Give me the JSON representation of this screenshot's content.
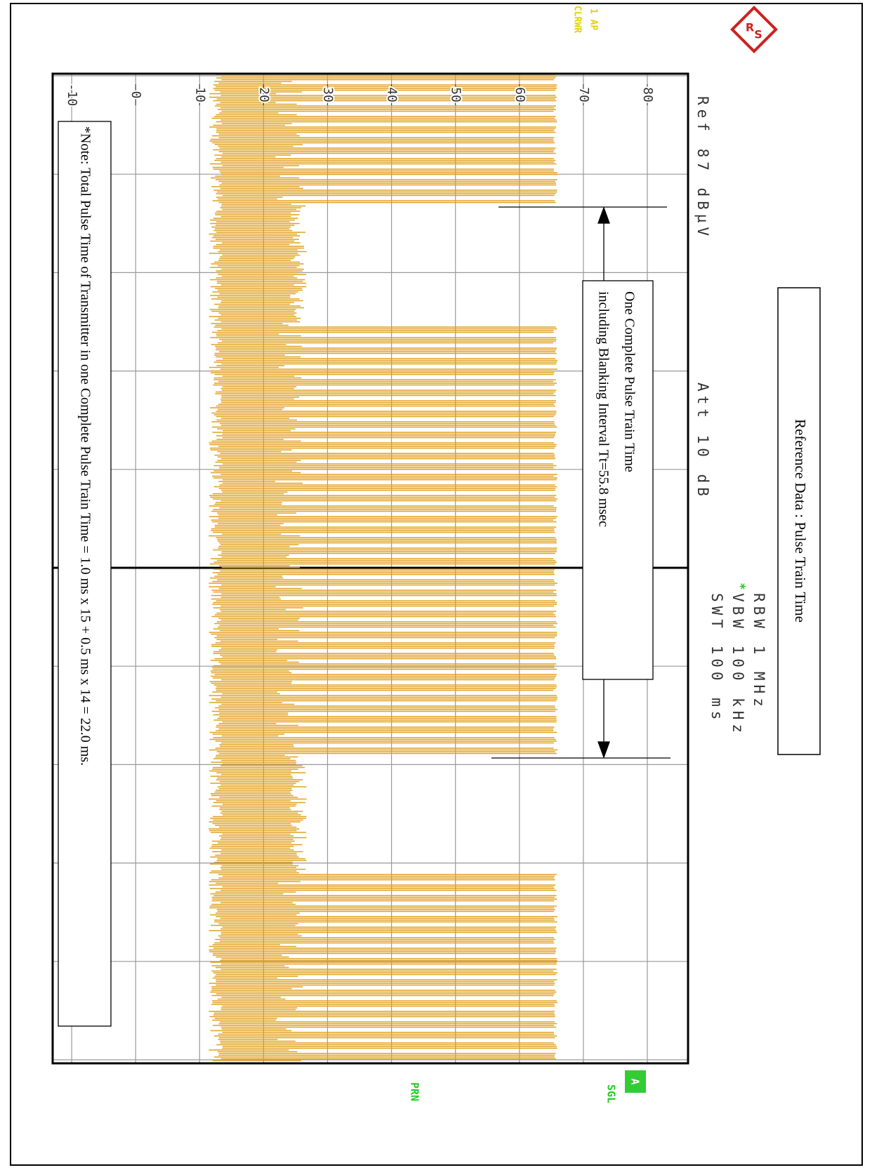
{
  "header": {
    "title": "Reference Data : Pulse Train Time",
    "ref": "Ref 87 dBµV",
    "att": "Att 10 dB",
    "rbw": "RBW 1 MHz",
    "vbw_flag": "*",
    "vbw": "VBW 100 kHz",
    "swt": "SWT 100 ms"
  },
  "trace": {
    "label": "1 AP",
    "mode": "CLRWR"
  },
  "axis": {
    "ticks": [
      "80",
      "70",
      "60",
      "50",
      "40",
      "30",
      "20",
      "10",
      "0",
      "-10"
    ]
  },
  "status": {
    "a": "A",
    "sgl": "SGL",
    "prn": "PRN"
  },
  "annotation": {
    "line1": "One Complete Pulse Train Time",
    "line2": "including Blanking Interval Tt=55.8 msec"
  },
  "note": "*Note: Total Pulse Time of Transmitter in one Complete Pulse Train Time = 1.0 ms x 15 + 0.5 ms x 14 = 22.0 ms."
}
